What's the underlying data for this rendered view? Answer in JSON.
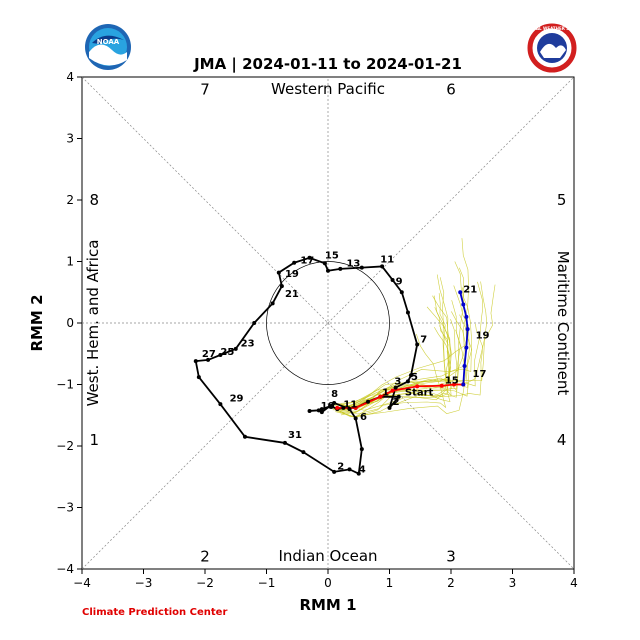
{
  "logos": {
    "left": "NOAA",
    "right": "NATIONAL WEATHER SERVICE"
  },
  "credit": "Climate Prediction Center",
  "chart_data": {
    "type": "line",
    "title": "JMA | 2024-01-11 to 2024-01-21",
    "xlabel": "RMM 1",
    "ylabel": "RMM 2",
    "xlim": [
      -4,
      4
    ],
    "ylim": [
      -4,
      4
    ],
    "xticks": [
      -4,
      -3,
      -2,
      -1,
      0,
      1,
      2,
      3,
      4
    ],
    "yticks": [
      -4,
      -3,
      -2,
      -1,
      0,
      1,
      2,
      3,
      4
    ],
    "phase_numbers": [
      {
        "label": "1",
        "x": -3.8,
        "y": -1.9
      },
      {
        "label": "2",
        "x": -2.0,
        "y": -3.8
      },
      {
        "label": "3",
        "x": 2.0,
        "y": -3.8
      },
      {
        "label": "4",
        "x": 3.8,
        "y": -1.9
      },
      {
        "label": "5",
        "x": 3.8,
        "y": 2.0
      },
      {
        "label": "6",
        "x": 2.0,
        "y": 3.8
      },
      {
        "label": "7",
        "x": -2.0,
        "y": 3.8
      },
      {
        "label": "8",
        "x": -3.8,
        "y": 2.0
      }
    ],
    "regions": {
      "top": "Western Pacific",
      "bottom": "Indian Ocean",
      "left": "West. Hem. and Africa",
      "right": "Maritime Continent"
    },
    "colors": {
      "observed": "#000000",
      "forecast_first": "#ff0000",
      "forecast_second": "#0000cc",
      "ensemble": "#c8c820"
    },
    "series": [
      {
        "values": [
          {
            "x": -0.1,
            "y": -1.45
          },
          {
            "x": 0.1,
            "y": -1.3
          },
          {
            "x": 0.35,
            "y": -1.4
          },
          {
            "x": 0.45,
            "y": -1.55
          },
          {
            "x": 0.55,
            "y": -2.05
          },
          {
            "x": 0.5,
            "y": -2.45
          },
          {
            "x": 0.35,
            "y": -2.38
          },
          {
            "x": 0.1,
            "y": -2.42
          },
          {
            "x": -0.4,
            "y": -2.1
          },
          {
            "x": -0.7,
            "y": -1.95
          },
          {
            "x": -1.35,
            "y": -1.85
          },
          {
            "x": -1.75,
            "y": -1.32
          },
          {
            "x": -2.1,
            "y": -0.88
          },
          {
            "x": -2.15,
            "y": -0.62
          },
          {
            "x": -1.95,
            "y": -0.6
          },
          {
            "x": -1.75,
            "y": -0.52
          },
          {
            "x": -1.5,
            "y": -0.42
          },
          {
            "x": -1.2,
            "y": 0.0
          },
          {
            "x": -0.9,
            "y": 0.32
          },
          {
            "x": -0.75,
            "y": 0.6
          },
          {
            "x": -0.8,
            "y": 0.82
          },
          {
            "x": -0.55,
            "y": 0.98
          },
          {
            "x": -0.3,
            "y": 1.06
          },
          {
            "x": -0.05,
            "y": 0.97
          },
          {
            "x": 0.0,
            "y": 0.85
          },
          {
            "x": 0.2,
            "y": 0.88
          },
          {
            "x": 0.55,
            "y": 0.9
          },
          {
            "x": 0.88,
            "y": 0.92
          },
          {
            "x": 1.05,
            "y": 0.7
          },
          {
            "x": 1.2,
            "y": 0.5
          },
          {
            "x": 1.3,
            "y": 0.17
          },
          {
            "x": 1.45,
            "y": -0.35
          },
          {
            "x": 1.35,
            "y": -0.85
          },
          {
            "x": 1.3,
            "y": -0.95
          },
          {
            "x": 1.1,
            "y": -1.05
          },
          {
            "x": 1.0,
            "y": -1.38
          },
          {
            "x": 1.15,
            "y": -1.2
          },
          {
            "x": 0.85,
            "y": -1.2
          },
          {
            "x": 0.65,
            "y": -1.28
          },
          {
            "x": 0.45,
            "y": -1.38
          },
          {
            "x": 0.25,
            "y": -1.38
          },
          {
            "x": 0.15,
            "y": -1.4
          },
          {
            "x": 0.05,
            "y": -1.35
          },
          {
            "x": -0.1,
            "y": -1.4
          },
          {
            "x": -0.15,
            "y": -1.42
          },
          {
            "x": -0.3,
            "y": -1.43
          }
        ]
      },
      {
        "values": [
          {
            "x": 0.15,
            "y": -1.38
          },
          {
            "x": 0.45,
            "y": -1.38
          },
          {
            "x": 0.85,
            "y": -1.2
          },
          {
            "x": 1.05,
            "y": -1.1
          },
          {
            "x": 1.45,
            "y": -1.03
          },
          {
            "x": 1.85,
            "y": -1.02
          },
          {
            "x": 2.05,
            "y": -1.0
          },
          {
            "x": 2.2,
            "y": -1.0
          }
        ]
      },
      {
        "values": [
          {
            "x": 2.2,
            "y": -1.0
          },
          {
            "x": 2.22,
            "y": -0.7
          },
          {
            "x": 2.25,
            "y": -0.4
          },
          {
            "x": 2.27,
            "y": -0.1
          },
          {
            "x": 2.25,
            "y": 0.1
          },
          {
            "x": 2.2,
            "y": 0.3
          },
          {
            "x": 2.15,
            "y": 0.5
          }
        ]
      }
    ],
    "day_labels": [
      {
        "text": "15",
        "x": -0.05,
        "y": 1.05
      },
      {
        "text": "17",
        "x": -0.45,
        "y": 0.97
      },
      {
        "text": "13",
        "x": 0.3,
        "y": 0.92
      },
      {
        "text": "11",
        "x": 0.85,
        "y": 0.98
      },
      {
        "text": "19",
        "x": -0.7,
        "y": 0.75
      },
      {
        "text": "9",
        "x": 1.1,
        "y": 0.63
      },
      {
        "text": "21",
        "x": -0.7,
        "y": 0.42
      },
      {
        "text": "7",
        "x": 1.5,
        "y": -0.32
      },
      {
        "text": "23",
        "x": -1.42,
        "y": -0.38
      },
      {
        "text": "27",
        "x": -2.05,
        "y": -0.55
      },
      {
        "text": "25",
        "x": -1.75,
        "y": -0.52
      },
      {
        "text": "5",
        "x": 1.35,
        "y": -0.93
      },
      {
        "text": "3",
        "x": 1.08,
        "y": -1.0
      },
      {
        "text": "15",
        "x": 1.9,
        "y": -0.98
      },
      {
        "text": "1",
        "x": 0.88,
        "y": -1.18
      },
      {
        "text": "Start",
        "x": 1.25,
        "y": -1.18
      },
      {
        "text": "29",
        "x": -1.6,
        "y": -1.28
      },
      {
        "text": "8",
        "x": 0.05,
        "y": -1.2
      },
      {
        "text": "2",
        "x": 1.05,
        "y": -1.33
      },
      {
        "text": "10",
        "x": -0.12,
        "y": -1.4
      },
      {
        "text": "11",
        "x": 0.25,
        "y": -1.37
      },
      {
        "text": "6",
        "x": 0.52,
        "y": -1.58
      },
      {
        "text": "31",
        "x": -0.65,
        "y": -1.87
      },
      {
        "text": "2",
        "x": 0.15,
        "y": -2.38
      },
      {
        "text": "4",
        "x": 0.5,
        "y": -2.43
      },
      {
        "text": "17",
        "x": 2.35,
        "y": -0.88
      },
      {
        "text": "19",
        "x": 2.4,
        "y": -0.25
      },
      {
        "text": "21",
        "x": 2.2,
        "y": 0.5
      }
    ],
    "ensemble_members": 24
  }
}
